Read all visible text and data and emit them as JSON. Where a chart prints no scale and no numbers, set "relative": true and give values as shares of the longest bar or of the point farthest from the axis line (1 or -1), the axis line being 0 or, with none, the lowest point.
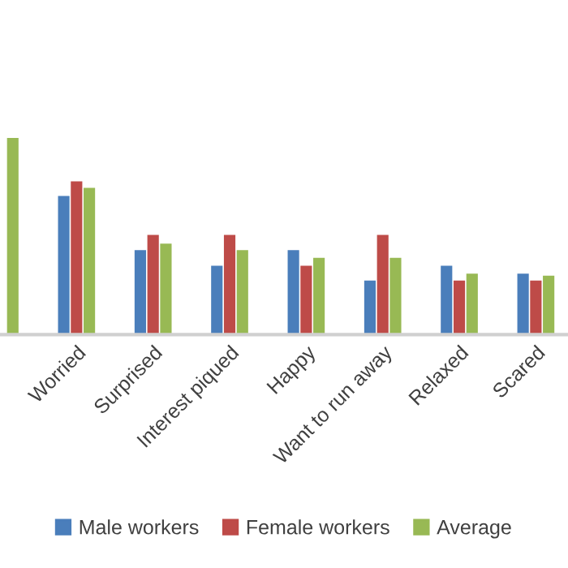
{
  "chart_data": {
    "type": "bar",
    "relative": true,
    "categories": [
      null,
      "Worried",
      "Surprised",
      "Interest piqued",
      "Happy",
      "Want to run away",
      "Relaxed",
      "Scared"
    ],
    "series": [
      {
        "name": "Male workers",
        "color": "#4a7ebb",
        "values": [
          null,
          0.705,
          0.43,
          0.35,
          0.43,
          0.275,
          0.35,
          0.31
        ]
      },
      {
        "name": "Female workers",
        "color": "#be4b48",
        "values": [
          null,
          0.78,
          0.507,
          0.507,
          0.35,
          0.507,
          0.275,
          0.275
        ]
      },
      {
        "name": "Average",
        "color": "#98b954",
        "values": [
          1,
          0.747,
          0.463,
          0.43,
          0.39,
          0.39,
          0.31,
          0.3
        ]
      }
    ],
    "legend": "bottom",
    "grid": false
  }
}
